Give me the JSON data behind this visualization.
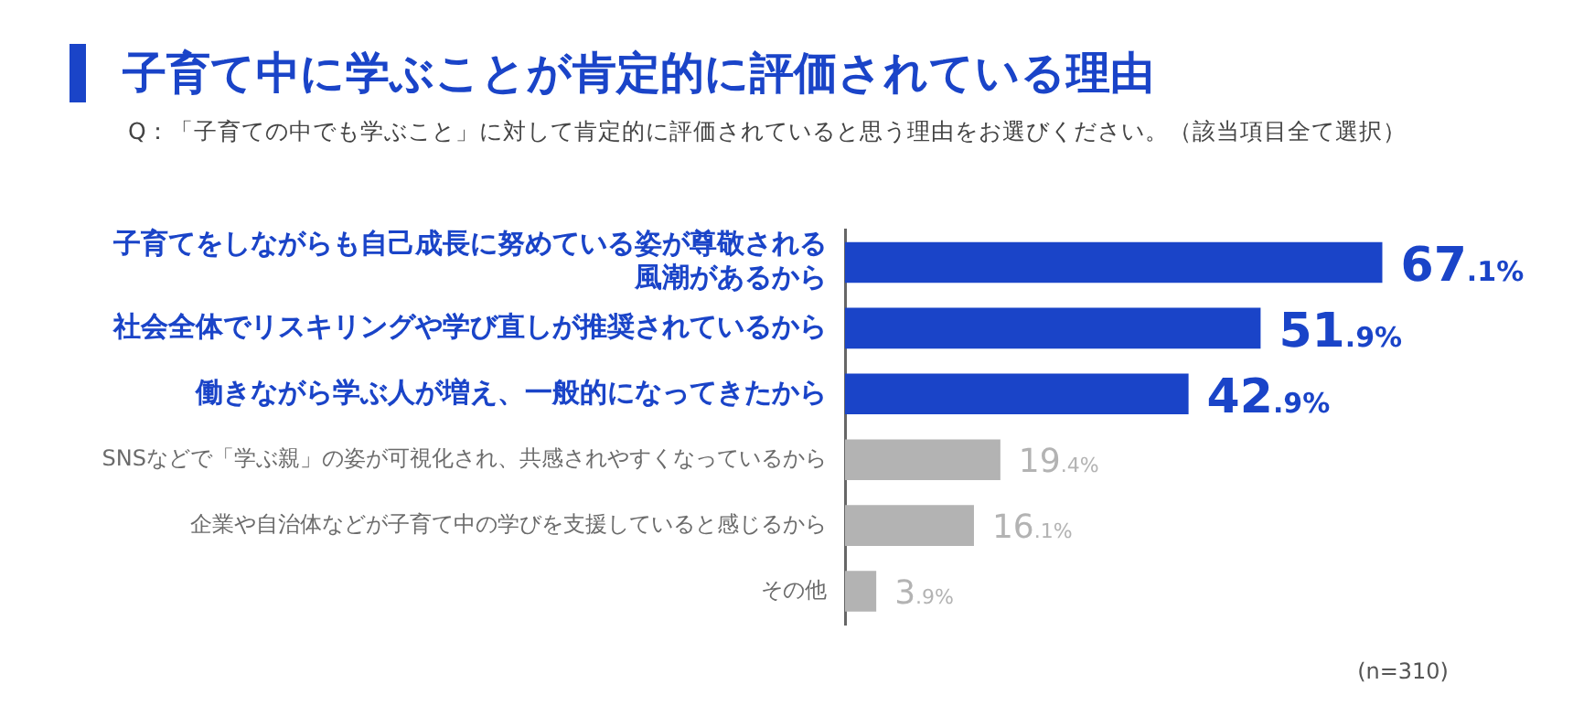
{
  "chart_data": {
    "type": "bar",
    "orientation": "horizontal",
    "title": "子育て中に学ぶことが肯定的に評価されている理由",
    "subtitle": "Q：「子育ての中でも学ぶこと」に対して肯定的に評価されていると思う理由をお選びください。（該当項目全て選択）",
    "categories": [
      "子育てをしながらも自己成長に努めている姿が尊敬される風潮があるから",
      "社会全体でリスキリングや学び直しが推奨されているから",
      "働きながら学ぶ人が増え、一般的になってきたから",
      "SNSなどで「学ぶ親」の姿が可視化され、共感されやすくなっているから",
      "企業や自治体などが子育て中の学びを支援していると感じるから",
      "その他"
    ],
    "values": [
      67.1,
      51.9,
      42.9,
      19.4,
      16.1,
      3.9
    ],
    "value_labels": [
      "67.1%",
      "51.9%",
      "42.9%",
      "19.4%",
      "16.1%",
      "3.9%"
    ],
    "colors": [
      "#1a44c8",
      "#1a44c8",
      "#1a44c8",
      "#b3b3b3",
      "#b3b3b3",
      "#b3b3b3"
    ],
    "annotations": [
      "(n=310)"
    ],
    "legend": false
  }
}
